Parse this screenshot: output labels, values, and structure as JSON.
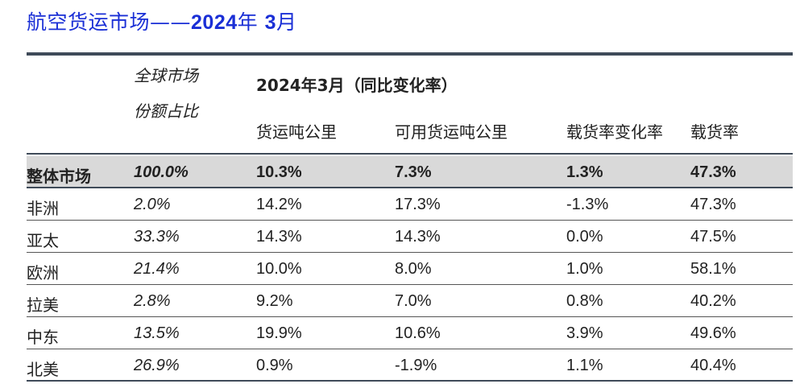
{
  "title": {
    "prefix": "航空货运市场——",
    "year": "2024",
    "year_suffix": "年 ",
    "month": "3",
    "month_suffix": "月"
  },
  "header": {
    "share_line1": "全球市场",
    "share_line2": "份额占比",
    "yoy_title": "2024年3月（同比变化率）",
    "columns": [
      "货运吨公里",
      "可用货运吨公里",
      "载货率变化率",
      "载货率"
    ]
  },
  "rows": [
    {
      "region": "整体市场",
      "share": "100.0%",
      "ctk": "10.3%",
      "actk": "7.3%",
      "lf_change": "1.3%",
      "lf": "47.3%"
    },
    {
      "region": "非洲",
      "share": "2.0%",
      "ctk": "14.2%",
      "actk": "17.3%",
      "lf_change": "-1.3%",
      "lf": "47.3%"
    },
    {
      "region": "亚太",
      "share": "33.3%",
      "ctk": "14.3%",
      "actk": "14.3%",
      "lf_change": "0.0%",
      "lf": "47.5%"
    },
    {
      "region": "欧洲",
      "share": "21.4%",
      "ctk": "10.0%",
      "actk": "8.0%",
      "lf_change": "1.0%",
      "lf": "58.1%"
    },
    {
      "region": "拉美",
      "share": "2.8%",
      "ctk": "9.2%",
      "actk": "7.0%",
      "lf_change": "0.8%",
      "lf": "40.2%"
    },
    {
      "region": "中东",
      "share": "13.5%",
      "ctk": "19.9%",
      "actk": "10.6%",
      "lf_change": "3.9%",
      "lf": "49.6%"
    },
    {
      "region": "北美",
      "share": "26.9%",
      "ctk": "0.9%",
      "actk": "-1.9%",
      "lf_change": "1.1%",
      "lf": "40.4%"
    }
  ],
  "colors": {
    "title": "#1a2fd6",
    "rule": "#3f4b59",
    "total_row_bg": "#d9d9d9"
  }
}
